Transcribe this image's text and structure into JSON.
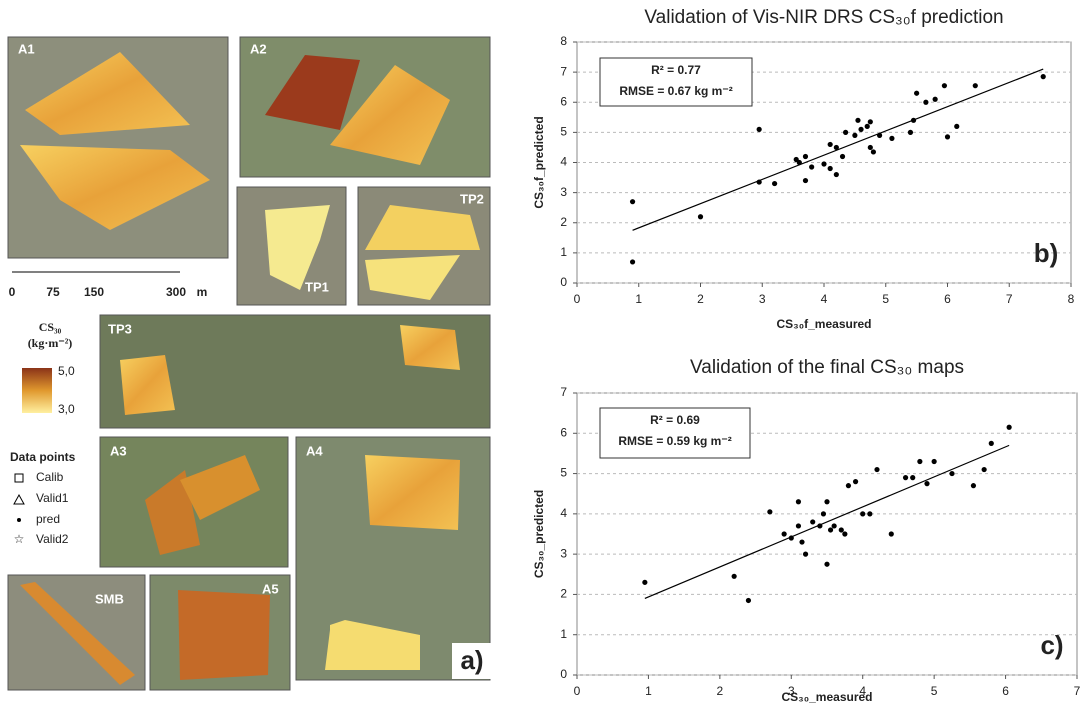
{
  "map_panel": {
    "site_labels": [
      "A1",
      "A2",
      "TP1",
      "TP2",
      "TP3",
      "A3",
      "A4",
      "SMB",
      "A5"
    ],
    "scale_labels": [
      "0",
      "75",
      "150",
      "300",
      "m"
    ],
    "legend_title": "CS₃₀",
    "legend_unit": "(kg·m⁻²)",
    "legend_max": "5,0",
    "legend_min": "3,0",
    "points_title": "Data points",
    "points": [
      "Calib",
      "Valid1",
      "pred",
      "Valid2"
    ],
    "panel_label": "a)"
  },
  "chart_data": [
    {
      "type": "scatter",
      "title": "Validation of Vis-NIR DRS CS₃₀f prediction",
      "x_label": "CS₃₀f_measured",
      "y_label": "CS₃₀f_predicted",
      "x": [
        0.9,
        0.9,
        2.0,
        2.95,
        2.95,
        3.2,
        3.55,
        3.6,
        3.7,
        3.7,
        3.8,
        4.0,
        4.1,
        4.1,
        4.2,
        4.2,
        4.3,
        4.35,
        4.5,
        4.55,
        4.6,
        4.7,
        4.75,
        4.8,
        4.75,
        4.9,
        5.1,
        5.4,
        5.45,
        5.5,
        5.65,
        5.8,
        5.95,
        6.0,
        6.15,
        6.45,
        7.55
      ],
      "values": [
        2.7,
        0.7,
        2.2,
        5.1,
        3.35,
        3.3,
        4.1,
        4.0,
        3.4,
        4.2,
        3.85,
        3.95,
        3.8,
        4.6,
        3.6,
        4.5,
        4.2,
        5.0,
        4.9,
        5.4,
        5.1,
        5.2,
        4.5,
        4.35,
        5.35,
        4.9,
        4.8,
        5.0,
        5.4,
        6.3,
        6.0,
        6.1,
        6.55,
        4.85,
        5.2,
        6.55,
        6.85
      ],
      "color": "#000000",
      "trendline": {
        "x": [
          0.9,
          7.55
        ],
        "values": [
          1.75,
          7.1
        ]
      },
      "annotations": [
        "R² = 0.77",
        "RMSE = 0.67 kg m⁻²"
      ],
      "panel_label": "b)",
      "xlim": [
        0,
        8
      ],
      "ylim": [
        0,
        8
      ],
      "xticks": [
        0,
        1,
        2,
        3,
        4,
        5,
        6,
        7,
        8
      ],
      "yticks": [
        0,
        1,
        2,
        3,
        4,
        5,
        6,
        7,
        8
      ],
      "grid": true
    },
    {
      "type": "scatter",
      "title": "Validation of the final CS₃₀ maps",
      "x_label": "CS₃₀_measured",
      "y_label": "CS₃₀_predicted",
      "x": [
        0.95,
        2.2,
        2.4,
        2.7,
        2.9,
        3.0,
        3.1,
        3.1,
        3.15,
        3.2,
        3.3,
        3.4,
        3.45,
        3.5,
        3.5,
        3.55,
        3.6,
        3.7,
        3.75,
        3.8,
        3.9,
        4.0,
        4.1,
        4.2,
        4.4,
        4.6,
        4.7,
        4.8,
        4.9,
        5.0,
        5.25,
        5.55,
        5.7,
        5.8,
        6.05
      ],
      "values": [
        2.3,
        2.45,
        1.85,
        4.05,
        3.5,
        3.4,
        3.7,
        4.3,
        3.3,
        3.0,
        3.8,
        3.7,
        4.0,
        2.75,
        4.3,
        3.6,
        3.7,
        3.6,
        3.5,
        4.7,
        4.8,
        4.0,
        4.0,
        5.1,
        3.5,
        4.9,
        4.9,
        5.3,
        4.75,
        5.3,
        5.0,
        4.7,
        5.1,
        5.75,
        6.15
      ],
      "color": "#000000",
      "trendline": {
        "x": [
          0.95,
          6.05
        ],
        "values": [
          1.9,
          5.7
        ]
      },
      "annotations": [
        "R² = 0.69",
        "RMSE = 0.59 kg m⁻²"
      ],
      "panel_label": "c)",
      "xlim": [
        0,
        7
      ],
      "ylim": [
        0,
        7
      ],
      "xticks": [
        0,
        1,
        2,
        3,
        4,
        5,
        6,
        7
      ],
      "yticks": [
        0,
        1,
        2,
        3,
        4,
        5,
        6,
        7
      ],
      "grid": true
    }
  ]
}
